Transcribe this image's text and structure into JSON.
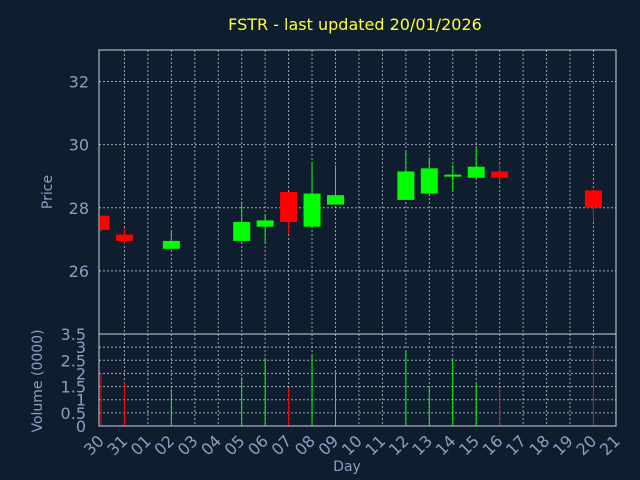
{
  "colors": {
    "background": "#0f1e2e",
    "title": "#ffff33",
    "axis_text": "#87a0c4",
    "grid": "#c8d2dc",
    "up": "#00ff00",
    "down": "#ff0000"
  },
  "chart_data": {
    "type": "candlestick",
    "title": "FSTR - last updated 20/01/2026",
    "xlabel": "Day",
    "price_panel": {
      "ylabel": "Price",
      "ylim": [
        24.0,
        33.0
      ],
      "ticks": [
        "26",
        "28",
        "30",
        "32"
      ],
      "tick_values": [
        26,
        28,
        30,
        32
      ],
      "grid": true
    },
    "volume_panel": {
      "ylabel": "Volume (0000)",
      "ylim": [
        0,
        3.5
      ],
      "ticks": [
        "0",
        "0.5",
        "1",
        "1.5",
        "2",
        "2.5",
        "3",
        "3.5"
      ],
      "tick_values": [
        0,
        0.5,
        1,
        1.5,
        2,
        2.5,
        3,
        3.5
      ],
      "grid": true
    },
    "x_tick_labels": [
      "30",
      "31",
      "01",
      "02",
      "03",
      "04",
      "05",
      "06",
      "07",
      "08",
      "09",
      "10",
      "11",
      "12",
      "13",
      "14",
      "15",
      "16",
      "17",
      "18",
      "19",
      "20",
      "21"
    ],
    "candles": [
      {
        "day": "30",
        "open": 27.75,
        "high": 27.75,
        "low": 27.25,
        "close": 27.3,
        "volume": 2.0
      },
      {
        "day": "31",
        "open": 27.15,
        "high": 27.35,
        "low": 26.85,
        "close": 26.95,
        "volume": 1.65
      },
      {
        "day": "02",
        "open": 26.7,
        "high": 27.25,
        "low": 26.7,
        "close": 26.95,
        "volume": 1.4
      },
      {
        "day": "05",
        "open": 26.95,
        "high": 28.2,
        "low": 26.95,
        "close": 27.55,
        "volume": 1.85
      },
      {
        "day": "06",
        "open": 27.4,
        "high": 27.8,
        "low": 26.85,
        "close": 27.6,
        "volume": 2.6
      },
      {
        "day": "07",
        "open": 28.5,
        "high": 28.5,
        "low": 27.15,
        "close": 27.55,
        "volume": 1.45
      },
      {
        "day": "08",
        "open": 27.4,
        "high": 29.45,
        "low": 27.4,
        "close": 28.45,
        "volume": 2.7
      },
      {
        "day": "09",
        "open": 28.1,
        "high": 29.35,
        "low": 28.1,
        "close": 28.4,
        "volume": 2.05
      },
      {
        "day": "12",
        "open": 28.25,
        "high": 29.8,
        "low": 28.25,
        "close": 29.15,
        "volume": 2.85
      },
      {
        "day": "13",
        "open": 28.45,
        "high": 29.6,
        "low": 28.45,
        "close": 29.25,
        "volume": 1.5
      },
      {
        "day": "14",
        "open": 29.05,
        "high": 29.35,
        "low": 28.5,
        "close": 29.05,
        "volume": 2.5
      },
      {
        "day": "15",
        "open": 28.95,
        "high": 29.9,
        "low": 28.95,
        "close": 29.3,
        "volume": 1.65
      },
      {
        "day": "16",
        "open": 29.15,
        "high": 29.4,
        "low": 28.8,
        "close": 28.95,
        "volume": 1.45
      },
      {
        "day": "20",
        "open": 28.55,
        "high": 28.55,
        "low": 27.55,
        "close": 28.0,
        "volume": 3.0
      }
    ]
  }
}
